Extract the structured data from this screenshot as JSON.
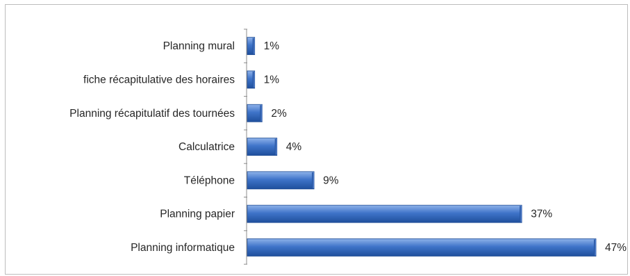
{
  "chart_data": {
    "type": "bar",
    "orientation": "horizontal",
    "categories": [
      "Planning mural",
      "fiche récapitulative des horaires",
      "Planning récapitulatif des tournées",
      "Calculatrice",
      "Téléphone",
      "Planning papier",
      "Planning informatique"
    ],
    "values": [
      1,
      1,
      2,
      4,
      9,
      37,
      47
    ],
    "value_labels": [
      "1%",
      "1%",
      "2%",
      "4%",
      "9%",
      "37%",
      "47%"
    ],
    "xlim": [
      0,
      47
    ],
    "grid": false,
    "legend": "none",
    "bar_color": "#3a6fc4"
  }
}
